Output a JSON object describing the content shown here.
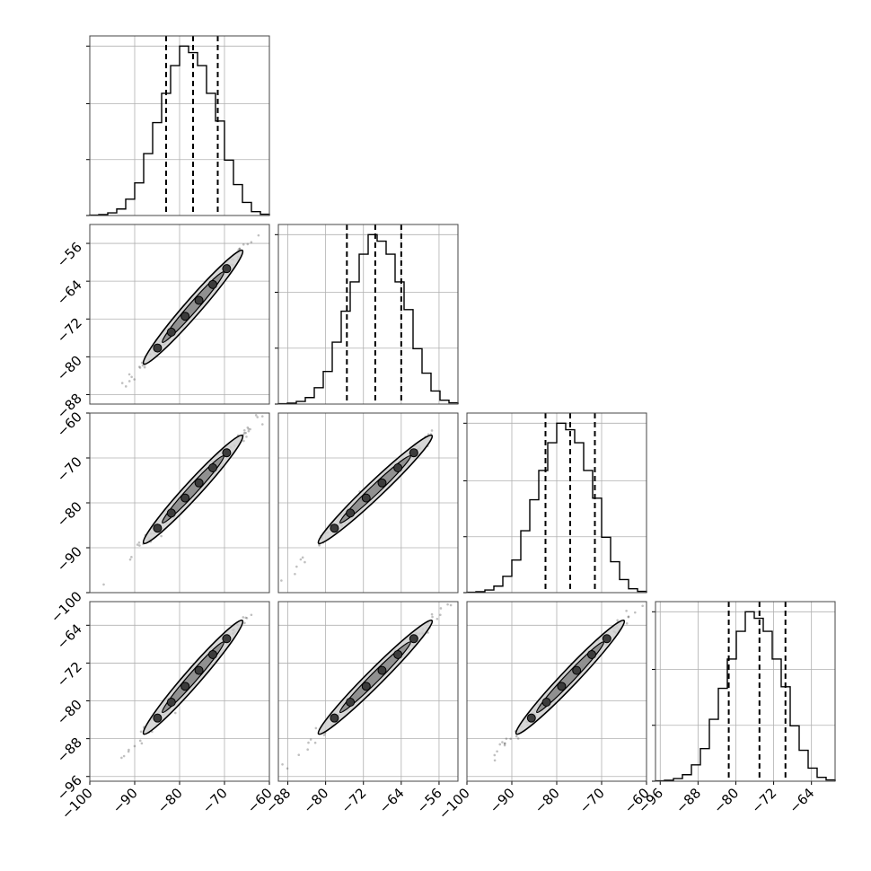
{
  "chart_data": {
    "type": "corner",
    "ndim": 4,
    "grid": true,
    "quantiles": [
      0.16,
      0.5,
      0.84
    ],
    "parameters": [
      {
        "mean": -77,
        "sd": 5.5,
        "range": [
          -100,
          -60
        ],
        "ticks": [
          -100,
          -90,
          -80,
          -70,
          -60
        ],
        "tick_labels": [
          "−100",
          "−90",
          "−80",
          "−70",
          "−60"
        ],
        "quantile_values": [
          -83,
          -77,
          -71.5
        ],
        "hist": [
          1,
          3,
          8,
          20,
          50,
          100,
          190,
          285,
          375,
          460,
          520,
          500,
          460,
          375,
          290,
          170,
          95,
          40,
          12,
          4
        ]
      },
      {
        "mean": -69.5,
        "sd": 6,
        "range": [
          -90,
          -52
        ],
        "ticks": [
          -88,
          -80,
          -72,
          -64,
          -56
        ],
        "tick_labels": [
          "−88",
          "−80",
          "−72",
          "−64",
          "−56"
        ],
        "quantile_values": [
          -75.5,
          -69.5,
          -64
        ],
        "hist": [
          1,
          3,
          8,
          20,
          50,
          100,
          190,
          285,
          375,
          460,
          520,
          500,
          460,
          375,
          290,
          170,
          95,
          40,
          12,
          4
        ]
      },
      {
        "mean": -77,
        "sd": 6,
        "range": [
          -100,
          -60
        ],
        "ticks": [
          -100,
          -90,
          -80,
          -70,
          -60
        ],
        "tick_labels": [
          "−100",
          "−90",
          "−80",
          "−70",
          "−60"
        ],
        "quantile_values": [
          -82.5,
          -77,
          -71.5
        ],
        "hist": [
          1,
          3,
          8,
          20,
          50,
          100,
          190,
          285,
          375,
          460,
          520,
          500,
          460,
          375,
          290,
          170,
          95,
          40,
          12,
          4
        ]
      },
      {
        "mean": -75,
        "sd": 6,
        "range": [
          -97,
          -59
        ],
        "ticks": [
          -96,
          -88,
          -80,
          -72,
          -64
        ],
        "tick_labels": [
          "−96",
          "−88",
          "−80",
          "−72",
          "−64"
        ],
        "quantile_values": [
          -81.5,
          -75,
          -69.5
        ],
        "hist": [
          1,
          3,
          8,
          20,
          50,
          100,
          190,
          285,
          375,
          460,
          520,
          500,
          460,
          375,
          290,
          170,
          95,
          40,
          12,
          4
        ]
      }
    ],
    "correlation": 0.985,
    "sample_count": 160,
    "colors": {
      "samples": "#4a4a4a",
      "contour_fill": "#d0d0d0",
      "lines": "#000000",
      "grid": "#b0b0b0"
    }
  }
}
